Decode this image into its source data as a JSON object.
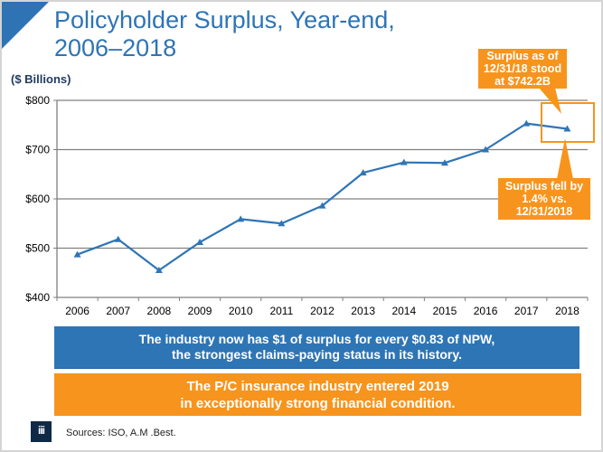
{
  "slide": {
    "title": "Policyholder Surplus, Year-end,\n2006–2018",
    "unit_label": "($ Billions)",
    "sources": "Sources: ISO, A.M .Best.",
    "logo_text": "iii",
    "callout_top": "Surplus as of\n12/31/18 stood\nat $742.2B",
    "callout_bottom": "Surplus fell by\n1.4% vs.\n12/31/2018",
    "info_blue": "The industry now has $1 of surplus for every $0.83 of NPW,\nthe strongest claims-paying status in its history.",
    "info_orange": "The P/C insurance industry entered 2019\nin exceptionally strong financial condition.",
    "colors": {
      "accent_blue": "#2e75b6",
      "accent_orange": "#f7941d",
      "line": "#2e75b6"
    }
  },
  "chart_data": {
    "type": "line",
    "title": "Policyholder Surplus, Year-end, 2006–2018",
    "xlabel": "",
    "ylabel": "($ Billions)",
    "categories": [
      "2006",
      "2007",
      "2008",
      "2009",
      "2010",
      "2011",
      "2012",
      "2013",
      "2014",
      "2015",
      "2016",
      "2017",
      "2018"
    ],
    "series": [
      {
        "name": "Policyholder Surplus",
        "marker": "triangle",
        "values": [
          487,
          518,
          455,
          512,
          559,
          550,
          586,
          653,
          674,
          673,
          700,
          753,
          742.2
        ]
      }
    ],
    "ylim": [
      400,
      800
    ],
    "yticks": [
      400,
      500,
      600,
      700,
      800
    ],
    "ytick_labels": [
      "$400",
      "$500",
      "$600",
      "$700",
      "$800"
    ],
    "grid": true,
    "legend": "none",
    "annotations": [
      {
        "text": "Surplus as of 12/31/18 stood at $742.2B",
        "target": "2018"
      },
      {
        "text": "Surplus fell by 1.4% vs. 12/31/2018",
        "target": "2018"
      }
    ]
  }
}
